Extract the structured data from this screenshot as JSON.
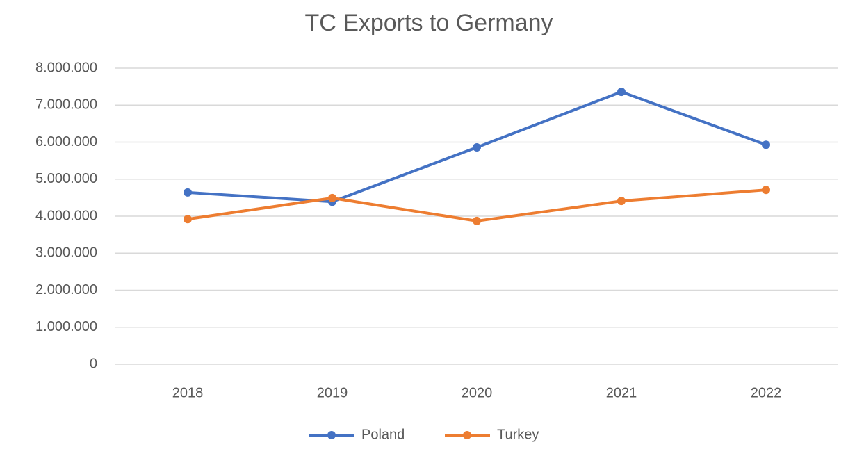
{
  "chart_data": {
    "type": "line",
    "title": "TC Exports to Germany",
    "categories": [
      "2018",
      "2019",
      "2020",
      "2021",
      "2022"
    ],
    "series": [
      {
        "name": "Poland",
        "color": "#4472c4",
        "values": [
          4640000,
          4390000,
          5860000,
          7360000,
          5930000
        ]
      },
      {
        "name": "Turkey",
        "color": "#ed7d31",
        "values": [
          3920000,
          4490000,
          3870000,
          4410000,
          4710000
        ]
      }
    ],
    "ylim": [
      0,
      8000000
    ],
    "yticks": [
      0,
      {
        "value": 1000000,
        "label": "1.000.000"
      },
      {
        "value": 2000000,
        "label": "2.000.000"
      },
      {
        "value": 3000000,
        "label": "3.000.000"
      },
      {
        "value": 4000000,
        "label": "4.000.000"
      },
      {
        "value": 5000000,
        "label": "5.000.000"
      },
      {
        "value": 6000000,
        "label": "6.000.000"
      },
      {
        "value": 7000000,
        "label": "7.000.000"
      },
      {
        "value": 8000000,
        "label": "8.000.000"
      }
    ],
    "grid": true,
    "legend": "bottom"
  }
}
